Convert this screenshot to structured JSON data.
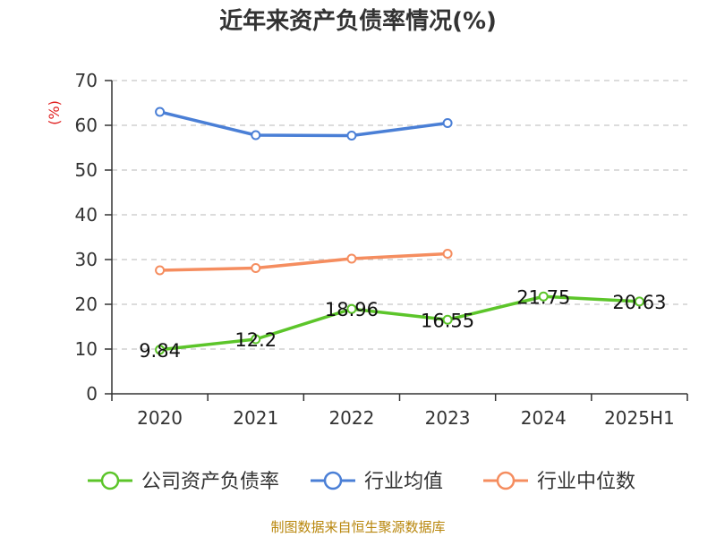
{
  "chart_data": {
    "type": "line",
    "title": "近年来资产负债率情况(%)",
    "ylabel": "(%)",
    "xlabel": "",
    "categories": [
      "2020",
      "2021",
      "2022",
      "2023",
      "2024",
      "2025H1"
    ],
    "ylim": [
      0,
      70
    ],
    "yticks": [
      "0",
      "10",
      "20",
      "30",
      "40",
      "50",
      "60",
      "70"
    ],
    "grid": true,
    "legend_position": "bottom",
    "series": [
      {
        "name": "公司资产负债率",
        "color": "#5cc52a",
        "values": [
          9.84,
          12.2,
          18.96,
          16.55,
          21.75,
          20.63
        ],
        "labels": [
          "9.84",
          "12.2",
          "18.96",
          "16.55",
          "21.75",
          "20.63"
        ]
      },
      {
        "name": "行业均值",
        "color": "#4a7fd6",
        "values": [
          63.0,
          57.8,
          57.7,
          60.5,
          null,
          null
        ]
      },
      {
        "name": "行业中位数",
        "color": "#f58d5f",
        "values": [
          27.6,
          28.1,
          30.2,
          31.3,
          null,
          null
        ]
      }
    ]
  },
  "source": "制图数据来自恒生聚源数据库"
}
